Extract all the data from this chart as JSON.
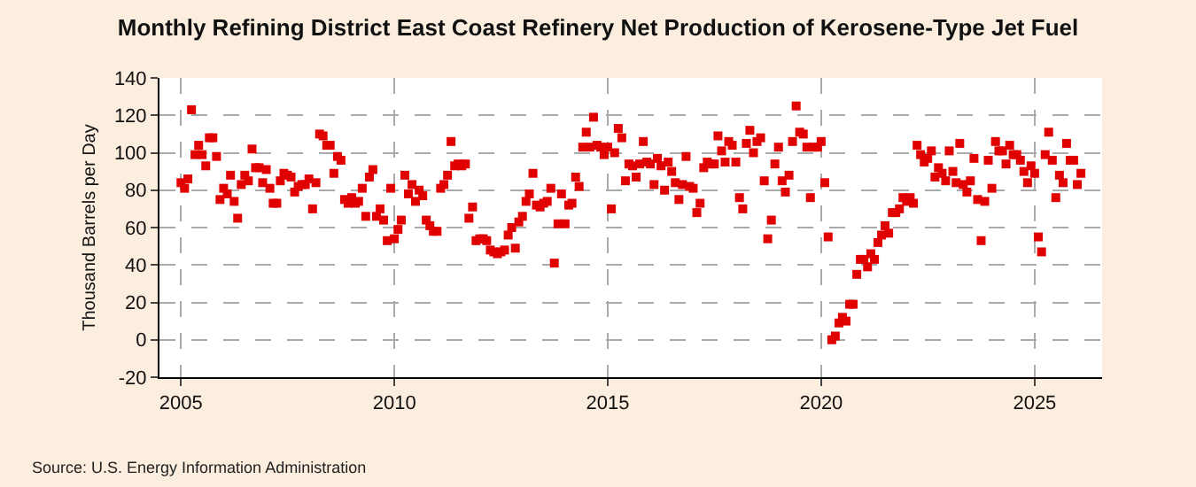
{
  "chart_data": {
    "type": "scatter",
    "title": "Monthly Refining District East Coast Refinery Net Production of Kerosene-Type Jet Fuel",
    "ylabel": "Thousand Barrels per Day",
    "annotations": [
      "Source: U.S. Energy Information Administration"
    ],
    "x": [
      "2005-01",
      "2005-02",
      "2005-03",
      "2005-04",
      "2005-05",
      "2005-06",
      "2005-07",
      "2005-08",
      "2005-09",
      "2005-10",
      "2005-11",
      "2005-12",
      "2006-01",
      "2006-02",
      "2006-03",
      "2006-04",
      "2006-05",
      "2006-06",
      "2006-07",
      "2006-08",
      "2006-09",
      "2006-10",
      "2006-11",
      "2006-12",
      "2007-01",
      "2007-02",
      "2007-03",
      "2007-04",
      "2007-05",
      "2007-06",
      "2007-07",
      "2007-08",
      "2007-09",
      "2007-10",
      "2007-11",
      "2007-12",
      "2008-01",
      "2008-02",
      "2008-03",
      "2008-04",
      "2008-05",
      "2008-06",
      "2008-07",
      "2008-08",
      "2008-09",
      "2008-10",
      "2008-11",
      "2008-12",
      "2009-01",
      "2009-02",
      "2009-03",
      "2009-04",
      "2009-05",
      "2009-06",
      "2009-07",
      "2009-08",
      "2009-09",
      "2009-10",
      "2009-11",
      "2009-12",
      "2010-01",
      "2010-02",
      "2010-03",
      "2010-04",
      "2010-05",
      "2010-06",
      "2010-07",
      "2010-08",
      "2010-09",
      "2010-10",
      "2010-11",
      "2010-12",
      "2011-01",
      "2011-02",
      "2011-03",
      "2011-04",
      "2011-05",
      "2011-06",
      "2011-07",
      "2011-08",
      "2011-09",
      "2011-10",
      "2011-11",
      "2011-12",
      "2012-01",
      "2012-02",
      "2012-03",
      "2012-04",
      "2012-05",
      "2012-06",
      "2012-07",
      "2012-08",
      "2012-09",
      "2012-10",
      "2012-11",
      "2012-12",
      "2013-01",
      "2013-02",
      "2013-03",
      "2013-04",
      "2013-05",
      "2013-06",
      "2013-07",
      "2013-08",
      "2013-09",
      "2013-10",
      "2013-11",
      "2013-12",
      "2014-01",
      "2014-02",
      "2014-03",
      "2014-04",
      "2014-05",
      "2014-06",
      "2014-07",
      "2014-08",
      "2014-09",
      "2014-10",
      "2014-11",
      "2014-12",
      "2015-01",
      "2015-02",
      "2015-03",
      "2015-04",
      "2015-05",
      "2015-06",
      "2015-07",
      "2015-08",
      "2015-09",
      "2015-10",
      "2015-11",
      "2015-12",
      "2016-01",
      "2016-02",
      "2016-03",
      "2016-04",
      "2016-05",
      "2016-06",
      "2016-07",
      "2016-08",
      "2016-09",
      "2016-10",
      "2016-11",
      "2016-12",
      "2017-01",
      "2017-02",
      "2017-03",
      "2017-04",
      "2017-05",
      "2017-06",
      "2017-07",
      "2017-08",
      "2017-09",
      "2017-10",
      "2017-11",
      "2017-12",
      "2018-01",
      "2018-02",
      "2018-03",
      "2018-04",
      "2018-05",
      "2018-06",
      "2018-07",
      "2018-08",
      "2018-09",
      "2018-10",
      "2018-11",
      "2018-12",
      "2019-01",
      "2019-02",
      "2019-03",
      "2019-04",
      "2019-05",
      "2019-06",
      "2019-07",
      "2019-08",
      "2019-09",
      "2019-10",
      "2019-11",
      "2019-12",
      "2020-01",
      "2020-02",
      "2020-03",
      "2020-04",
      "2020-05",
      "2020-06",
      "2020-07",
      "2020-08",
      "2020-09",
      "2020-10",
      "2020-11",
      "2020-12",
      "2021-01",
      "2021-02",
      "2021-03",
      "2021-04",
      "2021-05",
      "2021-06",
      "2021-07",
      "2021-08",
      "2021-09",
      "2021-10",
      "2021-11",
      "2021-12",
      "2022-01",
      "2022-02",
      "2022-03",
      "2022-04",
      "2022-05",
      "2022-06",
      "2022-07",
      "2022-08",
      "2022-09",
      "2022-10",
      "2022-11",
      "2022-12",
      "2023-01",
      "2023-02",
      "2023-03",
      "2023-04",
      "2023-05",
      "2023-06",
      "2023-07",
      "2023-08",
      "2023-09",
      "2023-10",
      "2023-11",
      "2023-12",
      "2024-01",
      "2024-02",
      "2024-03",
      "2024-04",
      "2024-05",
      "2024-06",
      "2024-07",
      "2024-08",
      "2024-09",
      "2024-10",
      "2024-11",
      "2024-12",
      "2025-01",
      "2025-02",
      "2025-03",
      "2025-04",
      "2025-05",
      "2025-06",
      "2025-07",
      "2025-08",
      "2025-09",
      "2025-10",
      "2025-11",
      "2025-12",
      "2026-01",
      "2026-02"
    ],
    "series": [
      {
        "color": "#e00000",
        "values": [
          84,
          81,
          86,
          123,
          99,
          104,
          99,
          93,
          108,
          108,
          98,
          75,
          81,
          78,
          88,
          74,
          65,
          83,
          88,
          85,
          102,
          92,
          92,
          84,
          91,
          81,
          73,
          73,
          85,
          89,
          88,
          87,
          79,
          82,
          83,
          83,
          86,
          70,
          84,
          110,
          109,
          104,
          104,
          89,
          98,
          96,
          75,
          73,
          76,
          73,
          74,
          81,
          66,
          87,
          91,
          66,
          70,
          64,
          53,
          81,
          54,
          59,
          64,
          88,
          78,
          83,
          74,
          80,
          77,
          64,
          61,
          58,
          58,
          81,
          83,
          88,
          106,
          93,
          94,
          93,
          94,
          65,
          71,
          53,
          54,
          54,
          53,
          48,
          47,
          46,
          47,
          48,
          56,
          60,
          49,
          63,
          66,
          74,
          78,
          89,
          72,
          71,
          73,
          74,
          81,
          41,
          62,
          78,
          62,
          72,
          73,
          87,
          82,
          103,
          111,
          103,
          119,
          104,
          103,
          99,
          103,
          70,
          100,
          113,
          108,
          85,
          94,
          93,
          87,
          94,
          106,
          95,
          94,
          83,
          97,
          93,
          80,
          95,
          90,
          84,
          75,
          83,
          98,
          82,
          81,
          68,
          73,
          92,
          95,
          94,
          94,
          109,
          101,
          95,
          106,
          104,
          95,
          76,
          70,
          105,
          112,
          100,
          106,
          108,
          85,
          54,
          64,
          94,
          103,
          85,
          79,
          88,
          106,
          125,
          111,
          110,
          103,
          76,
          103,
          103,
          106,
          84,
          55,
          0,
          2,
          9,
          12,
          10,
          19,
          19,
          35,
          43,
          43,
          39,
          46,
          43,
          52,
          56,
          61,
          57,
          68,
          68,
          70,
          76,
          74,
          76,
          73,
          104,
          99,
          95,
          97,
          101,
          87,
          92,
          89,
          85,
          101,
          90,
          84,
          105,
          83,
          79,
          85,
          97,
          75,
          53,
          74,
          96,
          81,
          106,
          101,
          101,
          94,
          104,
          99,
          99,
          96,
          90,
          84,
          93,
          89,
          55,
          47,
          99,
          111,
          96,
          76,
          88,
          84,
          105,
          96,
          96,
          83,
          89
        ]
      }
    ],
    "marker": "square",
    "xlim": [
      "2004-07",
      "2026-08"
    ],
    "xticks": [
      "2005",
      "2010",
      "2015",
      "2020",
      "2025"
    ],
    "ylim": [
      -20,
      140
    ],
    "yticks": [
      -20,
      0,
      20,
      40,
      60,
      80,
      100,
      120,
      140
    ],
    "grid": true
  }
}
